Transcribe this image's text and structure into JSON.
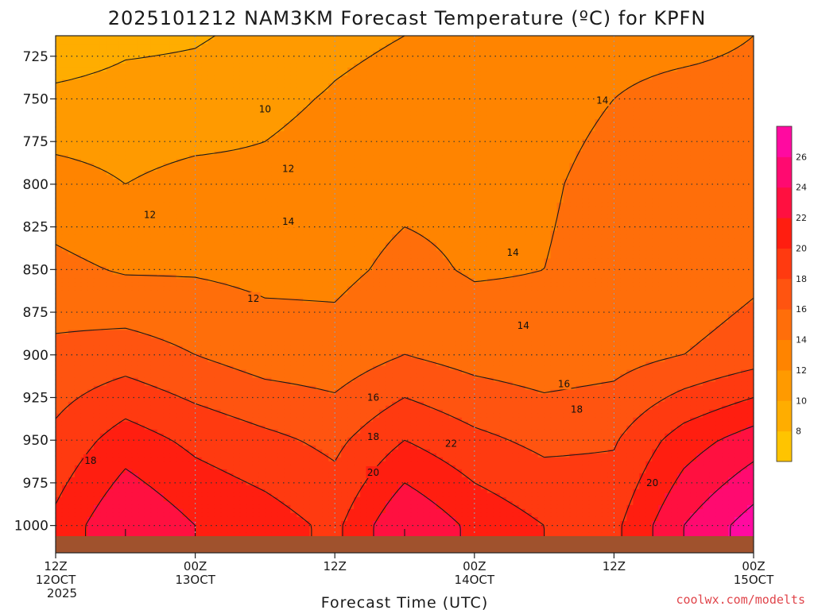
{
  "chart_data": {
    "type": "heatmap",
    "title": "2025101212 NAM3KM Forecast Temperature (ºC) for KPFN",
    "xlabel": "Forecast Time (UTC)",
    "credit": "coolwx.com/modelts",
    "y_axis": {
      "label": "",
      "ticks": [
        725,
        750,
        775,
        800,
        825,
        850,
        875,
        900,
        925,
        950,
        975,
        1000
      ],
      "range": [
        713,
        1016
      ],
      "inverted": true
    },
    "x_axis": {
      "range_hours": [
        0,
        60
      ],
      "ticks": [
        {
          "hour": 0,
          "line1": "12Z",
          "line2": "12OCT",
          "line3": "2025"
        },
        {
          "hour": 12,
          "line1": "00Z",
          "line2": "13OCT",
          "line3": ""
        },
        {
          "hour": 24,
          "line1": "12Z",
          "line2": "",
          "line3": ""
        },
        {
          "hour": 36,
          "line1": "00Z",
          "line2": "14OCT",
          "line3": ""
        },
        {
          "hour": 48,
          "line1": "12Z",
          "line2": "",
          "line3": ""
        },
        {
          "hour": 60,
          "line1": "00Z",
          "line2": "15OCT",
          "line3": ""
        }
      ]
    },
    "grid": true,
    "colorbar": {
      "levels": [
        6,
        8,
        10,
        12,
        14,
        16,
        18,
        20,
        22,
        24,
        26,
        28
      ],
      "labels": [
        8,
        10,
        12,
        14,
        16,
        18,
        20,
        22,
        24,
        26
      ],
      "colors": [
        "#ffc400",
        "#ffad00",
        "#ff9a00",
        "#ff8400",
        "#ff6e0a",
        "#ff5410",
        "#ff3a10",
        "#ff1e10",
        "#ff1040",
        "#ff0a70",
        "#ff0aa0"
      ]
    },
    "contour_labels": [
      {
        "text": "10",
        "hour": 18.0,
        "p": 756
      },
      {
        "text": "12",
        "hour": 20.0,
        "p": 791
      },
      {
        "text": "12",
        "hour": 8.1,
        "p": 818
      },
      {
        "text": "14",
        "hour": 20.0,
        "p": 822
      },
      {
        "text": "12",
        "hour": 17.0,
        "p": 867
      },
      {
        "text": "14",
        "hour": 39.3,
        "p": 840
      },
      {
        "text": "14",
        "hour": 40.2,
        "p": 883
      },
      {
        "text": "14",
        "hour": 47.0,
        "p": 751
      },
      {
        "text": "16",
        "hour": 27.3,
        "p": 925
      },
      {
        "text": "16",
        "hour": 43.7,
        "p": 917
      },
      {
        "text": "18",
        "hour": 27.3,
        "p": 948
      },
      {
        "text": "18",
        "hour": 44.8,
        "p": 932
      },
      {
        "text": "18",
        "hour": 3.0,
        "p": 962
      },
      {
        "text": "20",
        "hour": 27.3,
        "p": 969
      },
      {
        "text": "20",
        "hour": 51.3,
        "p": 975
      },
      {
        "text": "22",
        "hour": 34.0,
        "p": 952
      }
    ],
    "temperature_profile": {
      "hours": [
        0,
        6,
        12,
        18,
        24,
        30,
        36,
        42,
        48,
        54,
        60
      ],
      "columns": [
        {
          "p": [
            713,
            750,
            800,
            850,
            900,
            950,
            1000
          ],
          "t": [
            8.5,
            10.5,
            12.8,
            14.5,
            16.5,
            18.5,
            20.5
          ]
        },
        {
          "p": [
            713,
            750,
            800,
            850,
            900,
            950,
            1000
          ],
          "t": [
            9.5,
            10.8,
            12.0,
            13.8,
            17.0,
            21.0,
            24.0
          ]
        },
        {
          "p": [
            713,
            750,
            800,
            850,
            900,
            950,
            1000
          ],
          "t": [
            9.8,
            10.8,
            12.6,
            13.8,
            16.0,
            19.5,
            22.0
          ]
        },
        {
          "p": [
            713,
            750,
            800,
            850,
            900,
            950,
            1000
          ],
          "t": [
            10.5,
            11.5,
            12.5,
            13.5,
            15.0,
            18.5,
            21.0
          ]
        },
        {
          "p": [
            713,
            750,
            800,
            850,
            900,
            950,
            1000
          ],
          "t": [
            11.5,
            12.2,
            13.0,
            13.5,
            14.8,
            17.5,
            19.5
          ]
        },
        {
          "p": [
            713,
            750,
            800,
            850,
            900,
            950,
            1000
          ],
          "t": [
            12.0,
            12.8,
            13.5,
            14.5,
            16.0,
            20.0,
            24.0
          ]
        },
        {
          "p": [
            713,
            750,
            800,
            850,
            900,
            950,
            1000
          ],
          "t": [
            12.5,
            13.0,
            13.5,
            13.8,
            15.2,
            18.5,
            21.5
          ]
        },
        {
          "p": [
            713,
            750,
            800,
            850,
            900,
            950,
            1000
          ],
          "t": [
            13.0,
            13.5,
            13.8,
            14.0,
            14.8,
            17.5,
            20.0
          ]
        },
        {
          "p": [
            713,
            750,
            800,
            850,
            900,
            950,
            1000
          ],
          "t": [
            13.5,
            14.0,
            14.5,
            14.6,
            15.2,
            17.8,
            19.5
          ]
        },
        {
          "p": [
            713,
            750,
            800,
            850,
            900,
            950,
            1000
          ],
          "t": [
            13.5,
            14.5,
            15.0,
            14.5,
            16.0,
            21.0,
            24.0
          ]
        },
        {
          "p": [
            713,
            750,
            800,
            850,
            900,
            950,
            1000
          ],
          "t": [
            14.0,
            14.5,
            15.5,
            15.5,
            17.0,
            23.0,
            27.0
          ]
        }
      ]
    },
    "ground_color": "#a0522d"
  }
}
